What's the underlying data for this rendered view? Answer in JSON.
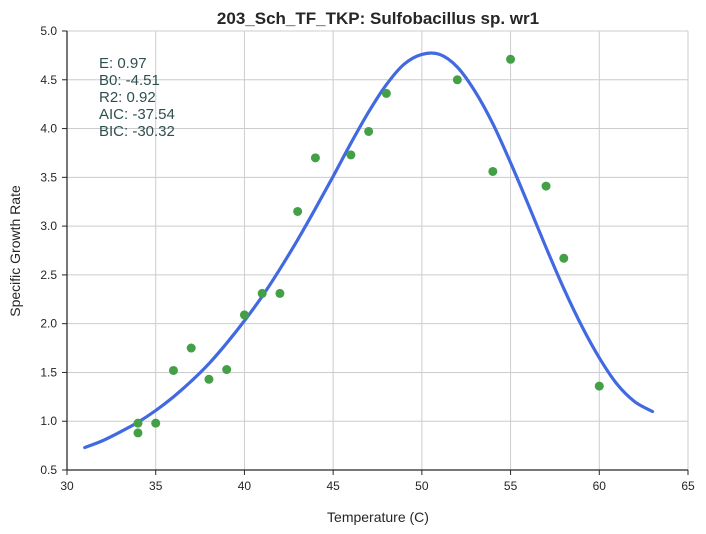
{
  "chart_data": {
    "type": "scatter",
    "title": "203_Sch_TF_TKP: Sulfobacillus sp. wr1",
    "xlabel": "Temperature (C)",
    "ylabel": "Specific Growth Rate",
    "xlim": [
      30,
      65
    ],
    "ylim": [
      0.5,
      5.0
    ],
    "xticks": [
      "30",
      "35",
      "40",
      "45",
      "50",
      "55",
      "60",
      "65"
    ],
    "yticks": [
      "0.5",
      "1.0",
      "1.5",
      "2.0",
      "2.5",
      "3.0",
      "3.5",
      "4.0",
      "4.5",
      "5.0"
    ],
    "grid": true,
    "colors": {
      "points": "#43a047",
      "fit": "#4169e1"
    },
    "annotations": [
      "E:  0.97",
      "B0:  -4.51",
      "R2:  0.92",
      "AIC: -37.54",
      "BIC: -30.32"
    ],
    "points": [
      {
        "x": 34,
        "y": 0.98
      },
      {
        "x": 34,
        "y": 0.88
      },
      {
        "x": 35,
        "y": 0.98
      },
      {
        "x": 36,
        "y": 1.52
      },
      {
        "x": 37,
        "y": 1.75
      },
      {
        "x": 38,
        "y": 1.43
      },
      {
        "x": 39,
        "y": 1.53
      },
      {
        "x": 40,
        "y": 2.09
      },
      {
        "x": 41,
        "y": 2.31
      },
      {
        "x": 42,
        "y": 2.31
      },
      {
        "x": 43,
        "y": 3.15
      },
      {
        "x": 44,
        "y": 3.7
      },
      {
        "x": 46,
        "y": 3.73
      },
      {
        "x": 47,
        "y": 3.97
      },
      {
        "x": 48,
        "y": 4.36
      },
      {
        "x": 52,
        "y": 4.5
      },
      {
        "x": 54,
        "y": 3.56
      },
      {
        "x": 55,
        "y": 4.71
      },
      {
        "x": 57,
        "y": 3.41
      },
      {
        "x": 58,
        "y": 2.67
      },
      {
        "x": 60,
        "y": 1.36
      }
    ],
    "fit": {
      "x": [
        31,
        32,
        33,
        34,
        35,
        36,
        37,
        38,
        39,
        40,
        41,
        42,
        43,
        44,
        45,
        46,
        47,
        48,
        49,
        50,
        51,
        52,
        53,
        54,
        55,
        56,
        57,
        58,
        59,
        60,
        61,
        62,
        63
      ],
      "y": [
        0.73,
        0.8,
        0.89,
        0.99,
        1.11,
        1.25,
        1.41,
        1.59,
        1.8,
        2.03,
        2.28,
        2.56,
        2.86,
        3.18,
        3.51,
        3.85,
        4.17,
        4.45,
        4.66,
        4.76,
        4.76,
        4.63,
        4.38,
        4.05,
        3.65,
        3.22,
        2.78,
        2.36,
        1.98,
        1.65,
        1.38,
        1.2,
        1.1
      ]
    }
  }
}
